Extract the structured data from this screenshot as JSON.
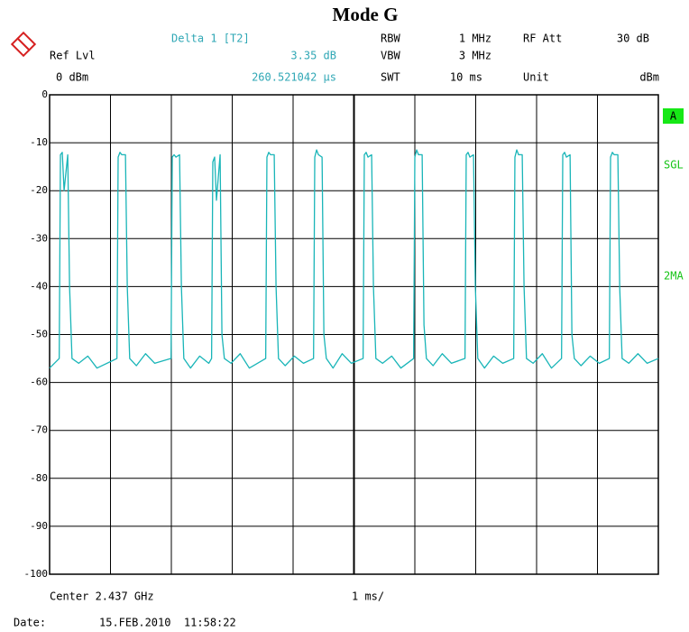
{
  "chart_data": {
    "type": "line",
    "title": "Mode G",
    "marker": {
      "label": "Delta 1 [T2]",
      "level": "3.35 dB",
      "time": "260.521042 µs"
    },
    "ref_label": "Ref Lvl",
    "ref_value": "0 dBm",
    "settings": [
      {
        "label": "RBW",
        "value": "1 MHz"
      },
      {
        "label": "RF Att",
        "value": "30 dB"
      },
      {
        "label": "VBW",
        "value": "3 MHz"
      },
      {
        "label": "SWT",
        "value": "10 ms"
      },
      {
        "label": "Unit",
        "value": "dBm"
      }
    ],
    "side_labels": [
      "A",
      "SGL",
      "2MA"
    ],
    "center_label": "Center 2.437 GHz",
    "span_label": "1 ms/",
    "date_label": "Date:",
    "date_value": "15.FEB.2010  11:58:22",
    "color": "#19b5b8",
    "grid": true,
    "xlim": [
      0,
      10
    ],
    "xticks": [
      0,
      1,
      2,
      3,
      4,
      5,
      6,
      7,
      8,
      9,
      10
    ],
    "ylim": [
      -100,
      0
    ],
    "yticks": [
      0,
      -10,
      -20,
      -30,
      -40,
      -50,
      -60,
      -70,
      -80,
      -90,
      -100
    ],
    "x": [
      0,
      0.158,
      0.178,
      0.208,
      0.238,
      0.298,
      0.328,
      0.368,
      0.478,
      0.628,
      0.778,
      1.106,
      1.126,
      1.156,
      1.186,
      1.246,
      1.276,
      1.316,
      1.426,
      1.576,
      1.726,
      1.995,
      2.015,
      2.045,
      2.075,
      2.135,
      2.165,
      2.205,
      2.315,
      2.465,
      2.615,
      2.661,
      2.681,
      2.711,
      2.741,
      2.801,
      2.831,
      2.871,
      2.981,
      3.131,
      3.281,
      3.55,
      3.57,
      3.6,
      3.63,
      3.69,
      3.72,
      3.76,
      3.87,
      4.02,
      4.17,
      4.336,
      4.356,
      4.386,
      4.416,
      4.476,
      4.506,
      4.546,
      4.656,
      4.806,
      4.956,
      5.15,
      5.17,
      5.2,
      5.23,
      5.29,
      5.32,
      5.36,
      5.47,
      5.62,
      5.77,
      5.98,
      6,
      6.03,
      6.06,
      6.12,
      6.15,
      6.19,
      6.3,
      6.45,
      6.6,
      6.824,
      6.844,
      6.874,
      6.904,
      6.964,
      6.994,
      7.034,
      7.144,
      7.294,
      7.444,
      7.624,
      7.644,
      7.674,
      7.704,
      7.764,
      7.794,
      7.834,
      7.944,
      8.094,
      8.244,
      8.41,
      8.43,
      8.46,
      8.49,
      8.55,
      8.58,
      8.62,
      8.73,
      8.88,
      9.03,
      9.195,
      9.215,
      9.245,
      9.275,
      9.335,
      9.365,
      9.405,
      9.515,
      9.665,
      9.815,
      10
    ],
    "values": [
      -57,
      -55,
      -12.5,
      -12,
      -20,
      -12.5,
      -40,
      -55,
      -56,
      -54.5,
      -57,
      -55,
      -13,
      -12,
      -12.5,
      -12.5,
      -40,
      -55,
      -56.5,
      -54,
      -56,
      -55,
      -13,
      -12.5,
      -13,
      -12.5,
      -40,
      -55,
      -57,
      -54.5,
      -56,
      -55,
      -14,
      -13,
      -22,
      -12.5,
      -50,
      -55,
      -56,
      -54,
      -57,
      -55,
      -13,
      -12,
      -12.5,
      -12.5,
      -40,
      -55,
      -56.5,
      -54.5,
      -56,
      -55,
      -13,
      -11.5,
      -12.5,
      -13,
      -50,
      -55,
      -57,
      -54,
      -56,
      -55,
      -12.5,
      -12,
      -13,
      -12.5,
      -40,
      -55,
      -56,
      -54.5,
      -57,
      -55,
      -13,
      -11.5,
      -12.5,
      -12.5,
      -48,
      -55,
      -56.5,
      -54,
      -56,
      -55,
      -12.5,
      -12,
      -13,
      -12.5,
      -40,
      -55,
      -57,
      -54.5,
      -56,
      -55,
      -13,
      -11.5,
      -12.5,
      -12.5,
      -40,
      -55,
      -56,
      -54,
      -57,
      -55,
      -12.5,
      -12,
      -13,
      -12.5,
      -50,
      -55,
      -56.5,
      -54.5,
      -56,
      -55,
      -13,
      -12,
      -12.5,
      -12.5,
      -40,
      -55,
      -56,
      -54,
      -56,
      -55
    ]
  }
}
